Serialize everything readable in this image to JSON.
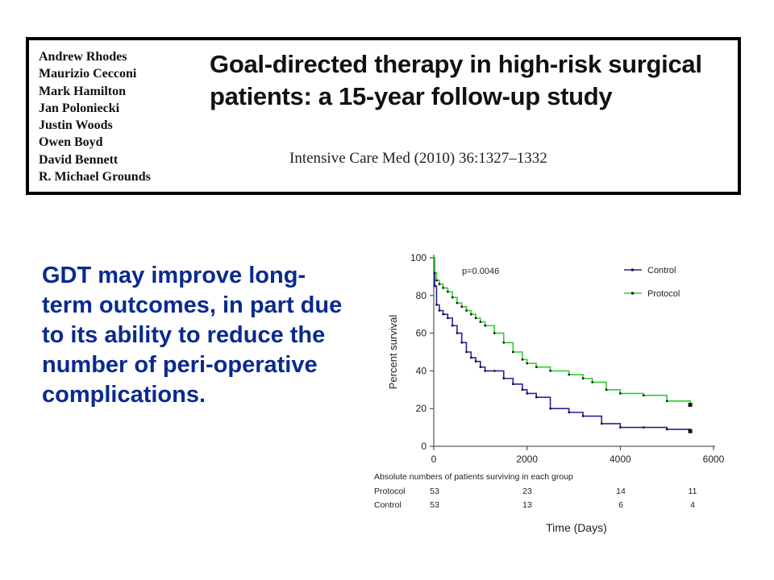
{
  "citation": {
    "authors": [
      "Andrew Rhodes",
      "Maurizio Cecconi",
      "Mark Hamilton",
      "Jan Poloniecki",
      "Justin Woods",
      "Owen Boyd",
      "David Bennett",
      "R. Michael Grounds"
    ],
    "title": "Goal-directed therapy in high-risk surgical patients: a 15-year follow-up study",
    "journal": "Intensive Care Med (2010) 36:1327–1332"
  },
  "claim": "GDT may improve long-term outcomes, in part due to its ability to reduce the number of peri-operative complications.",
  "chart_data": {
    "type": "line",
    "subtype": "kaplan-meier",
    "xlabel": "Time (Days)",
    "ylabel": "Percent survival",
    "xlim": [
      0,
      6000
    ],
    "ylim": [
      0,
      100
    ],
    "xticks": [
      0,
      2000,
      4000,
      6000
    ],
    "yticks": [
      0,
      20,
      40,
      60,
      80,
      100
    ],
    "annotation": "p=0.0046",
    "legend_position": "top-right",
    "series": [
      {
        "name": "Control",
        "color": "#2c1f9c",
        "x": [
          0,
          20,
          60,
          120,
          200,
          300,
          400,
          500,
          600,
          700,
          800,
          900,
          1000,
          1100,
          1300,
          1500,
          1700,
          1900,
          2000,
          2200,
          2500,
          2900,
          3200,
          3600,
          4000,
          4500,
          5000,
          5500
        ],
        "y": [
          100,
          85,
          75,
          72,
          70,
          68,
          64,
          60,
          55,
          50,
          47,
          45,
          42,
          40,
          40,
          36,
          33,
          30,
          28,
          26,
          20,
          18,
          16,
          12,
          10,
          10,
          9,
          8
        ]
      },
      {
        "name": "Protocol",
        "color": "#33cc33",
        "x": [
          0,
          20,
          60,
          120,
          200,
          300,
          400,
          500,
          600,
          700,
          800,
          900,
          1000,
          1100,
          1300,
          1500,
          1700,
          1900,
          2000,
          2200,
          2500,
          2900,
          3200,
          3400,
          3700,
          4000,
          4500,
          5000,
          5500
        ],
        "y": [
          100,
          92,
          88,
          86,
          84,
          82,
          79,
          76,
          74,
          72,
          70,
          68,
          66,
          64,
          60,
          55,
          50,
          46,
          44,
          42,
          40,
          38,
          36,
          34,
          30,
          28,
          27,
          24,
          22
        ]
      }
    ],
    "risk_table": {
      "title": "Absolute numbers of patients surviving in each group",
      "rows": [
        {
          "label": "Protocol",
          "values": [
            "53",
            "23",
            "14",
            "11"
          ]
        },
        {
          "label": "Control",
          "values": [
            "53",
            "13",
            "6",
            "4"
          ]
        }
      ]
    }
  }
}
